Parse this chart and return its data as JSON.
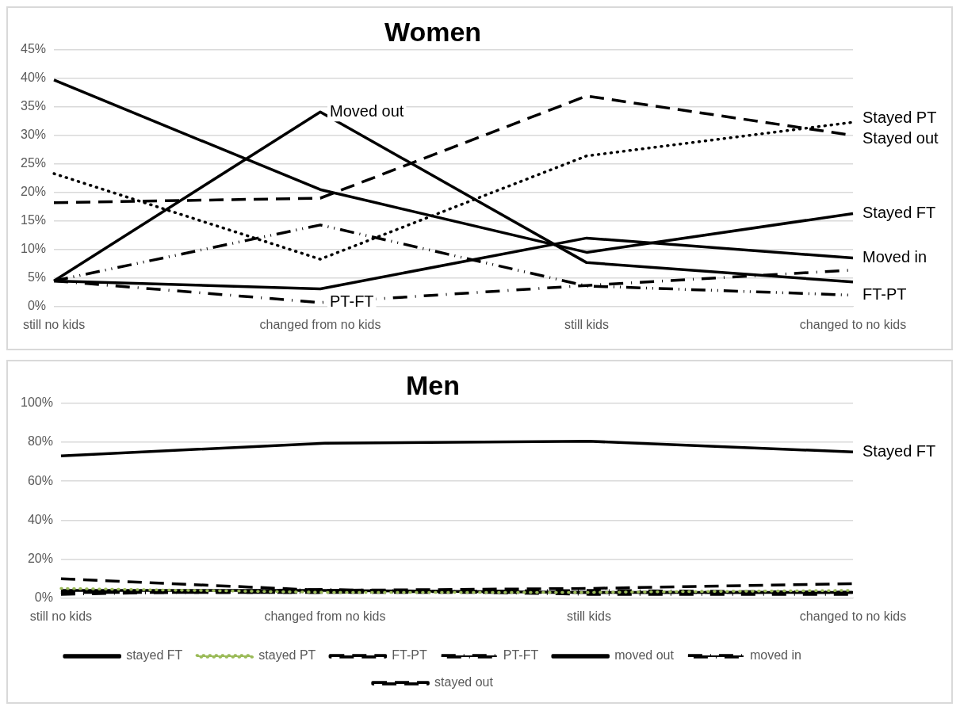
{
  "chart_data": [
    {
      "type": "line",
      "title": "Women",
      "categories": [
        "still no kids",
        "changed from no kids",
        "still kids",
        "changed to no kids"
      ],
      "series": [
        {
          "color": "#000000",
          "line_style": "solid",
          "values": [
            39.7,
            20.5,
            9.5,
            16.3
          ]
        },
        {
          "color": "#000000",
          "line_style": "dotted",
          "values": [
            23.3,
            8.3,
            26.4,
            32.3
          ]
        },
        {
          "color": "#000000",
          "line_style": "dashdotdot",
          "values": [
            4.5,
            14.3,
            3.6,
            2.0
          ]
        },
        {
          "color": "#000000",
          "line_style": "dashdot",
          "values": [
            4.5,
            0.7,
            3.7,
            6.4
          ]
        },
        {
          "color": "#000000",
          "line_style": "solid",
          "values": [
            4.5,
            34.1,
            7.7,
            4.3
          ]
        },
        {
          "color": "#000000",
          "line_style": "solid",
          "values": [
            4.5,
            3.1,
            12.0,
            8.5
          ]
        },
        {
          "color": "#000000",
          "line_style": "dashed",
          "values": [
            18.2,
            19.0,
            36.9,
            30.0
          ]
        }
      ],
      "ylim": [
        0,
        45
      ],
      "yticks": [
        {
          "value": 0,
          "label": "0%"
        },
        {
          "value": 5,
          "label": "5%"
        },
        {
          "value": 10,
          "label": "10%"
        },
        {
          "value": 15,
          "label": "15%"
        },
        {
          "value": 20,
          "label": "20%"
        },
        {
          "value": 25,
          "label": "25%"
        },
        {
          "value": 30,
          "label": "30%"
        },
        {
          "value": 35,
          "label": "35%"
        },
        {
          "value": 40,
          "label": "40%"
        },
        {
          "value": 45,
          "label": "45%"
        }
      ],
      "grid": "y",
      "legend": false,
      "annotations": [
        {
          "text": "Moved out",
          "x": "changed from no kids",
          "y": 34.1
        },
        {
          "text": "Stayed PT",
          "x": "changed to no kids",
          "y": 32.3
        },
        {
          "text": "Stayed out",
          "x": "changed to no kids",
          "y": 30.0
        },
        {
          "text": "Stayed FT",
          "x": "changed to no kids",
          "y": 16.3
        },
        {
          "text": "Moved in",
          "x": "changed to no kids",
          "y": 8.5
        },
        {
          "text": "FT-PT",
          "x": "changed to no kids",
          "y": 2.0
        },
        {
          "text": "PT-FT",
          "x": "changed from no kids",
          "y": 0.7
        }
      ]
    },
    {
      "type": "line",
      "title": "Men",
      "categories": [
        "still no kids",
        "changed from no kids",
        "still kids",
        "changed to no kids"
      ],
      "series": [
        {
          "name": "stayed FT",
          "color": "#000000",
          "line_style": "solid",
          "values": [
            73,
            79.5,
            80.5,
            75
          ]
        },
        {
          "name": "stayed PT",
          "color": "#9bbb59",
          "line_style": "dotted",
          "values": [
            5,
            3,
            3,
            4
          ]
        },
        {
          "name": "FT-PT",
          "color": "#000000",
          "line_style": "dashed",
          "values": [
            3,
            3,
            3,
            3
          ]
        },
        {
          "name": "PT-FT",
          "color": "#000000",
          "line_style": "dashdot",
          "values": [
            2,
            4.5,
            2,
            2
          ]
        },
        {
          "name": "moved out",
          "color": "#000000",
          "line_style": "solid",
          "values": [
            4,
            4,
            3,
            3
          ]
        },
        {
          "name": "moved in",
          "color": "#000000",
          "line_style": "dashdot",
          "values": [
            3,
            3,
            4,
            3
          ]
        },
        {
          "name": "stayed out",
          "color": "#000000",
          "line_style": "dashed",
          "values": [
            10,
            4,
            5,
            7.5
          ]
        }
      ],
      "ylim": [
        0,
        100
      ],
      "yticks": [
        {
          "value": 0,
          "label": "0%"
        },
        {
          "value": 20,
          "label": "20%"
        },
        {
          "value": 40,
          "label": "40%"
        },
        {
          "value": 60,
          "label": "60%"
        },
        {
          "value": 80,
          "label": "80%"
        },
        {
          "value": 100,
          "label": "100%"
        }
      ],
      "grid": "y",
      "legend": "bottom",
      "annotations": [
        {
          "text": "Stayed FT",
          "x": "changed to no kids",
          "y": 75
        }
      ]
    }
  ]
}
